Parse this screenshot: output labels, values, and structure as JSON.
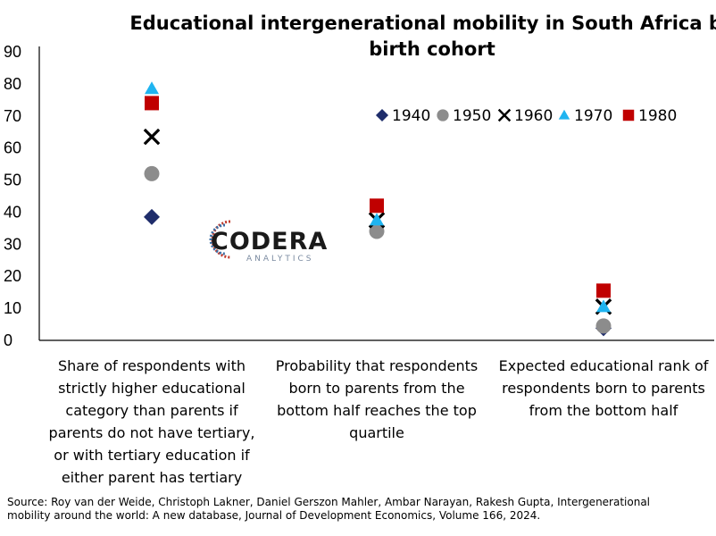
{
  "chart_data": {
    "type": "scatter",
    "title_lines": [
      "Educational intergenerational mobility in South Africa by",
      "birth cohort"
    ],
    "ylim": [
      0,
      90
    ],
    "y_ticks": [
      "0",
      "10",
      "20",
      "30",
      "40",
      "50",
      "60",
      "70",
      "80",
      "90"
    ],
    "grid": false,
    "legend_position": "top-right",
    "categories": [
      [
        "Share of respondents with",
        "strictly higher educational",
        "category than parents if",
        "parents do not have tertiary,",
        "or with tertiary education if",
        "either parent has tertiary"
      ],
      [
        "Probability that respondents",
        "born to parents from the",
        "bottom half reaches the top",
        "quartile"
      ],
      [
        "Expected educational rank of",
        "respondents born to parents",
        "from the bottom half"
      ]
    ],
    "series": [
      {
        "name": "1940",
        "marker": "diamond",
        "color": "#1f2d6b",
        "values": [
          38.5,
          35.5,
          3.8
        ]
      },
      {
        "name": "1950",
        "marker": "circle",
        "color": "#8c8c8c",
        "values": [
          52,
          34,
          4.5
        ]
      },
      {
        "name": "1960",
        "marker": "x",
        "color": "#000000",
        "values": [
          63.5,
          37.5,
          10.5
        ]
      },
      {
        "name": "1970",
        "marker": "triangle",
        "color": "#1fb4f0",
        "values": [
          78.5,
          37.5,
          10.5
        ]
      },
      {
        "name": "1980",
        "marker": "square",
        "color": "#c00000",
        "values": [
          74,
          42,
          15.5
        ]
      }
    ],
    "source_lines": [
      "Source: Roy van der Weide, Christoph Lakner, Daniel Gerszon Mahler, Ambar Narayan, Rakesh Gupta, Intergenerational",
      "mobility around the world: A new database, Journal of Development Economics, Volume 166, 2024."
    ]
  },
  "watermark": {
    "name": "CODERA",
    "sub": "ANALYTICS"
  }
}
